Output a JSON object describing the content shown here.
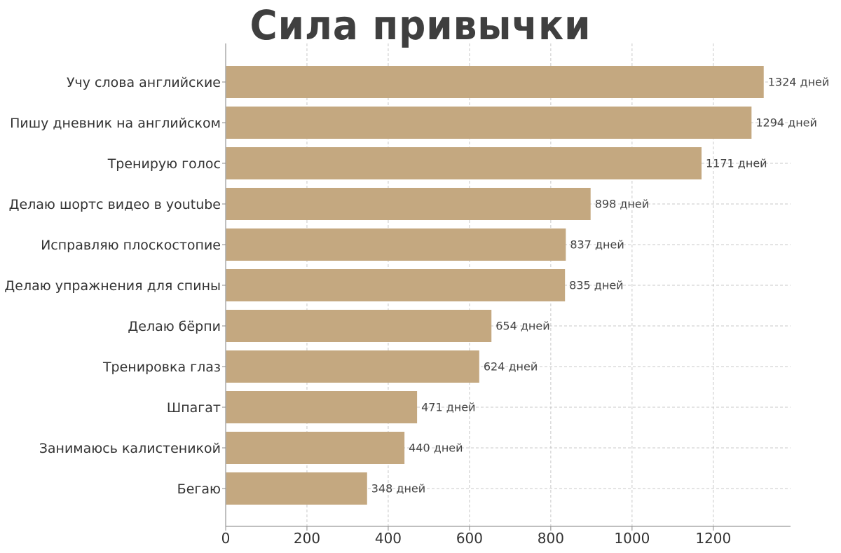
{
  "chart_data": {
    "type": "bar",
    "orientation": "horizontal",
    "title": "Сила привычки",
    "categories": [
      "Учу слова английские",
      "Пишу дневник на английском",
      "Тренирую голос",
      "Делаю шортс видео в youtube",
      "Исправляю плоскостопие",
      "Делаю упражнения для спины",
      "Делаю бёрпи",
      "Тренировка глаз",
      "Шпагат",
      "Занимаюсь калистеникой",
      "Бегаю"
    ],
    "values": [
      1324,
      1294,
      1171,
      898,
      837,
      835,
      654,
      624,
      471,
      440,
      348
    ],
    "data_labels": [
      "1324 дней",
      "1294 дней",
      "1171 дней",
      "898 дней",
      "837 дней",
      "835 дней",
      "654 дней",
      "624 дней",
      "471 дней",
      "440 дней",
      "348 дней"
    ],
    "x_ticks": [
      0,
      200,
      400,
      600,
      800,
      1000,
      1200
    ],
    "xlim": [
      0,
      1390
    ],
    "xlabel": "",
    "ylabel": "",
    "grid": true,
    "bar_color": "#c4a880"
  }
}
